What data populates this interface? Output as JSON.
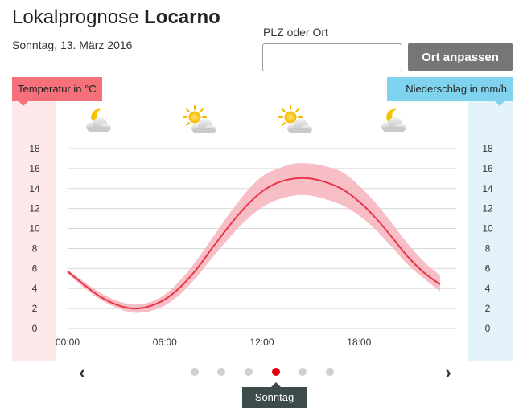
{
  "header": {
    "title_prefix": "Lokalprognose",
    "location": "Locarno",
    "date": "Sonntag, 13. März 2016"
  },
  "search": {
    "label": "PLZ oder Ort",
    "value": "",
    "placeholder": "",
    "button_label": "Ort anpassen"
  },
  "legend": {
    "temperature_label": "Temperatur in °C",
    "precipitation_label": "Niederschlag in mm/h"
  },
  "weather_icons": [
    {
      "time": "03:00",
      "icon": "moon-cloud-icon"
    },
    {
      "time": "09:00",
      "icon": "sun-cloud-icon"
    },
    {
      "time": "15:00",
      "icon": "sun-cloud-icon"
    },
    {
      "time": "21:00",
      "icon": "moon-cloud-icon"
    }
  ],
  "colors": {
    "temperature_line": "#e8364a",
    "temperature_band": "#f7b3bb",
    "temperature_axis_bg": "#fde8ea",
    "precipitation_axis_bg": "#e4f3fa",
    "active_dot": "#e3000f"
  },
  "chart_data": {
    "type": "line",
    "x_tick_labels": [
      "00:00",
      "06:00",
      "12:00",
      "18:00"
    ],
    "y_ticks_left": [
      "18",
      "16",
      "14",
      "12",
      "10",
      "8",
      "6",
      "4",
      "2",
      "0"
    ],
    "y_ticks_right": [
      "18",
      "16",
      "14",
      "12",
      "10",
      "8",
      "6",
      "4",
      "2",
      "0"
    ],
    "ylim": [
      0,
      18
    ],
    "xlim_hours": [
      0,
      24
    ],
    "grid": true,
    "series": [
      {
        "x": [
          0,
          1,
          2,
          3,
          4,
          5,
          6,
          7,
          8,
          9,
          10,
          11,
          12,
          13,
          14,
          15,
          16,
          17,
          18,
          19,
          20,
          21,
          22,
          23
        ],
        "values": [
          5.7,
          4.4,
          3.2,
          2.4,
          2.0,
          2.2,
          2.9,
          4.2,
          6.0,
          8.2,
          10.3,
          12.2,
          13.7,
          14.6,
          15.0,
          15.0,
          14.6,
          13.9,
          12.7,
          11.1,
          9.2,
          7.2,
          5.6,
          4.4
        ],
        "min": [
          5.5,
          4.1,
          2.9,
          2.1,
          1.6,
          1.7,
          2.3,
          3.5,
          5.2,
          7.2,
          9.1,
          10.8,
          12.1,
          12.9,
          13.3,
          13.3,
          12.9,
          12.3,
          11.3,
          9.9,
          8.2,
          6.4,
          5.0,
          3.7
        ],
        "max": [
          5.9,
          4.7,
          3.6,
          2.8,
          2.4,
          2.6,
          3.4,
          4.9,
          6.9,
          9.2,
          11.5,
          13.6,
          15.2,
          16.0,
          16.5,
          16.5,
          16.2,
          15.6,
          14.3,
          12.6,
          10.6,
          8.5,
          6.7,
          5.3
        ]
      }
    ]
  },
  "day_nav": {
    "prev_icon": "chevron-left-icon",
    "next_icon": "chevron-right-icon",
    "prev_glyph": "‹",
    "next_glyph": "›",
    "day_count": 6,
    "active_day_index": 3,
    "active_day_label": "Sonntag"
  }
}
